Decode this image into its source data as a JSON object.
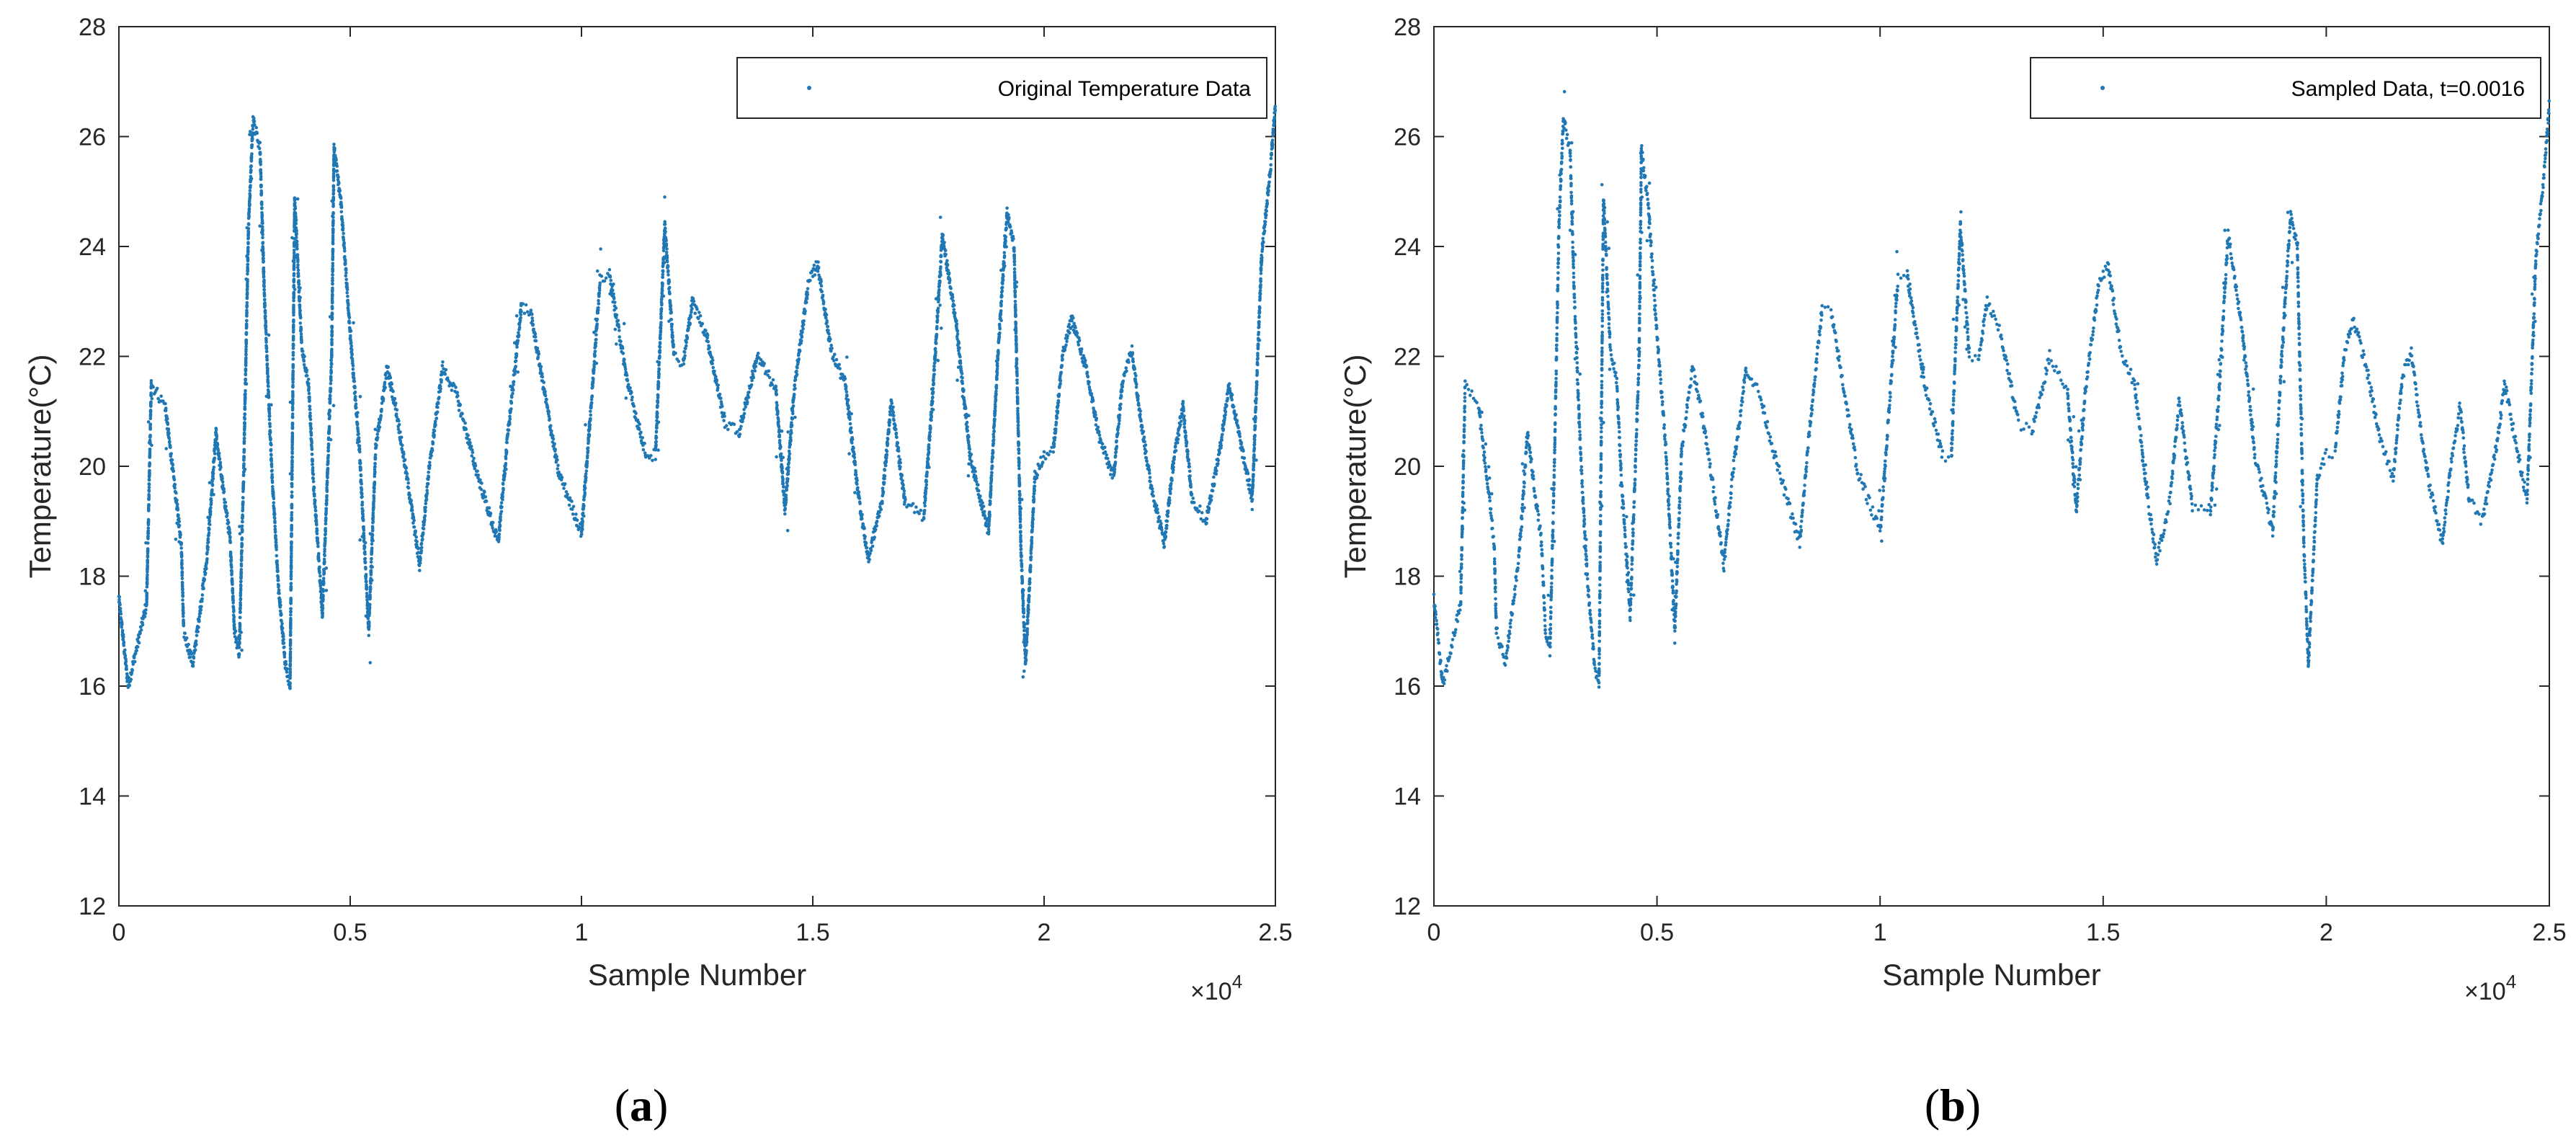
{
  "chart_data": [
    {
      "type": "scatter",
      "panel_label": "a",
      "legend": "Original Temperature Data",
      "xlabel": "Sample Number",
      "ylabel": "Temperature(°C)",
      "x_multiplier": "×10",
      "x_multiplier_exponent": "4",
      "xlim": [
        0,
        2.5
      ],
      "ylim": [
        12,
        28
      ],
      "xticks": [
        "0",
        "0.5",
        "1",
        "1.5",
        "2",
        "2.5"
      ],
      "yticks": [
        "12",
        "14",
        "16",
        "18",
        "20",
        "22",
        "24",
        "26",
        "28"
      ],
      "color": "#1f77b4",
      "density": 1.0,
      "trace": [
        [
          0.0,
          17.6
        ],
        [
          0.02,
          16.0
        ],
        [
          0.06,
          17.5
        ],
        [
          0.07,
          21.5
        ],
        [
          0.1,
          21.1
        ],
        [
          0.135,
          18.6
        ],
        [
          0.14,
          17.0
        ],
        [
          0.16,
          16.4
        ],
        [
          0.19,
          18.3
        ],
        [
          0.21,
          20.6
        ],
        [
          0.225,
          19.6
        ],
        [
          0.24,
          18.7
        ],
        [
          0.245,
          17.9
        ],
        [
          0.25,
          17.0
        ],
        [
          0.26,
          16.6
        ],
        [
          0.27,
          20.0
        ],
        [
          0.28,
          24.3
        ],
        [
          0.29,
          26.3
        ],
        [
          0.305,
          25.8
        ],
        [
          0.315,
          23.0
        ],
        [
          0.33,
          20.0
        ],
        [
          0.345,
          17.8
        ],
        [
          0.36,
          16.4
        ],
        [
          0.37,
          16.0
        ],
        [
          0.38,
          24.9
        ],
        [
          0.395,
          22.2
        ],
        [
          0.41,
          21.5
        ],
        [
          0.42,
          19.8
        ],
        [
          0.44,
          17.3
        ],
        [
          0.46,
          22.0
        ],
        [
          0.465,
          25.8
        ],
        [
          0.48,
          24.8
        ],
        [
          0.5,
          22.4
        ],
        [
          0.52,
          20.3
        ],
        [
          0.54,
          17.0
        ],
        [
          0.555,
          20.3
        ],
        [
          0.58,
          21.8
        ],
        [
          0.6,
          21.0
        ],
        [
          0.63,
          19.4
        ],
        [
          0.65,
          18.2
        ],
        [
          0.67,
          19.9
        ],
        [
          0.7,
          21.8
        ],
        [
          0.73,
          21.3
        ],
        [
          0.77,
          20.0
        ],
        [
          0.82,
          18.6
        ],
        [
          0.84,
          20.5
        ],
        [
          0.87,
          22.9
        ],
        [
          0.89,
          22.8
        ],
        [
          0.95,
          19.9
        ],
        [
          1.0,
          18.8
        ],
        [
          1.02,
          21.0
        ],
        [
          1.04,
          23.4
        ],
        [
          1.06,
          23.5
        ],
        [
          1.1,
          21.5
        ],
        [
          1.14,
          20.2
        ],
        [
          1.16,
          20.2
        ],
        [
          1.18,
          24.4
        ],
        [
          1.2,
          22.0
        ],
        [
          1.22,
          21.9
        ],
        [
          1.24,
          23.0
        ],
        [
          1.27,
          22.4
        ],
        [
          1.31,
          20.8
        ],
        [
          1.34,
          20.6
        ],
        [
          1.38,
          22.0
        ],
        [
          1.42,
          21.4
        ],
        [
          1.44,
          19.2
        ],
        [
          1.46,
          21.4
        ],
        [
          1.49,
          23.3
        ],
        [
          1.51,
          23.7
        ],
        [
          1.54,
          22.1
        ],
        [
          1.57,
          21.5
        ],
        [
          1.6,
          19.4
        ],
        [
          1.62,
          18.3
        ],
        [
          1.65,
          19.4
        ],
        [
          1.67,
          21.2
        ],
        [
          1.7,
          19.3
        ],
        [
          1.74,
          19.1
        ],
        [
          1.76,
          21.4
        ],
        [
          1.78,
          24.2
        ],
        [
          1.81,
          22.6
        ],
        [
          1.84,
          20.2
        ],
        [
          1.88,
          18.8
        ],
        [
          1.9,
          22.0
        ],
        [
          1.92,
          24.6
        ],
        [
          1.935,
          24.0
        ],
        [
          1.95,
          18.5
        ],
        [
          1.96,
          16.4
        ],
        [
          1.98,
          19.8
        ],
        [
          2.0,
          20.2
        ],
        [
          2.02,
          20.3
        ],
        [
          2.04,
          22.0
        ],
        [
          2.06,
          22.7
        ],
        [
          2.09,
          21.8
        ],
        [
          2.12,
          20.5
        ],
        [
          2.15,
          19.8
        ],
        [
          2.17,
          21.6
        ],
        [
          2.19,
          22.1
        ],
        [
          2.21,
          20.8
        ],
        [
          2.23,
          19.7
        ],
        [
          2.26,
          18.6
        ],
        [
          2.28,
          20.1
        ],
        [
          2.3,
          21.1
        ],
        [
          2.32,
          19.4
        ],
        [
          2.35,
          19.0
        ],
        [
          2.38,
          20.3
        ],
        [
          2.4,
          21.5
        ],
        [
          2.43,
          20.2
        ],
        [
          2.45,
          19.4
        ],
        [
          2.47,
          23.8
        ],
        [
          2.49,
          25.5
        ],
        [
          2.5,
          26.6
        ]
      ]
    },
    {
      "type": "scatter",
      "panel_label": "b",
      "legend": "Sampled Data, t=0.0016",
      "xlabel": "Sample Number",
      "ylabel": "Temperature(°C)",
      "x_multiplier": "×10",
      "x_multiplier_exponent": "4",
      "xlim": [
        0,
        2.5
      ],
      "ylim": [
        12,
        28
      ],
      "xticks": [
        "0",
        "0.5",
        "1",
        "1.5",
        "2",
        "2.5"
      ],
      "yticks": [
        "12",
        "14",
        "16",
        "18",
        "20",
        "22",
        "24",
        "26",
        "28"
      ],
      "color": "#1f77b4",
      "density": 0.55,
      "trace": [
        [
          0.0,
          17.6
        ],
        [
          0.02,
          16.0
        ],
        [
          0.06,
          17.5
        ],
        [
          0.07,
          21.5
        ],
        [
          0.1,
          21.1
        ],
        [
          0.135,
          18.6
        ],
        [
          0.14,
          17.0
        ],
        [
          0.16,
          16.4
        ],
        [
          0.19,
          18.3
        ],
        [
          0.21,
          20.6
        ],
        [
          0.225,
          19.6
        ],
        [
          0.24,
          18.7
        ],
        [
          0.245,
          17.9
        ],
        [
          0.25,
          17.0
        ],
        [
          0.26,
          16.6
        ],
        [
          0.27,
          20.0
        ],
        [
          0.28,
          24.3
        ],
        [
          0.29,
          26.3
        ],
        [
          0.305,
          25.8
        ],
        [
          0.315,
          23.0
        ],
        [
          0.33,
          20.0
        ],
        [
          0.345,
          17.8
        ],
        [
          0.36,
          16.4
        ],
        [
          0.37,
          16.0
        ],
        [
          0.38,
          24.9
        ],
        [
          0.395,
          22.2
        ],
        [
          0.41,
          21.5
        ],
        [
          0.42,
          19.8
        ],
        [
          0.44,
          17.3
        ],
        [
          0.46,
          22.0
        ],
        [
          0.465,
          25.8
        ],
        [
          0.48,
          24.8
        ],
        [
          0.5,
          22.4
        ],
        [
          0.52,
          20.3
        ],
        [
          0.54,
          17.0
        ],
        [
          0.555,
          20.3
        ],
        [
          0.58,
          21.8
        ],
        [
          0.6,
          21.0
        ],
        [
          0.63,
          19.4
        ],
        [
          0.65,
          18.2
        ],
        [
          0.67,
          19.9
        ],
        [
          0.7,
          21.8
        ],
        [
          0.73,
          21.3
        ],
        [
          0.77,
          20.0
        ],
        [
          0.82,
          18.6
        ],
        [
          0.84,
          20.5
        ],
        [
          0.87,
          22.9
        ],
        [
          0.89,
          22.8
        ],
        [
          0.95,
          19.9
        ],
        [
          1.0,
          18.8
        ],
        [
          1.02,
          21.0
        ],
        [
          1.04,
          23.4
        ],
        [
          1.06,
          23.5
        ],
        [
          1.1,
          21.5
        ],
        [
          1.14,
          20.2
        ],
        [
          1.16,
          20.2
        ],
        [
          1.18,
          24.4
        ],
        [
          1.2,
          22.0
        ],
        [
          1.22,
          21.9
        ],
        [
          1.24,
          23.0
        ],
        [
          1.27,
          22.4
        ],
        [
          1.31,
          20.8
        ],
        [
          1.34,
          20.6
        ],
        [
          1.38,
          22.0
        ],
        [
          1.42,
          21.4
        ],
        [
          1.44,
          19.2
        ],
        [
          1.46,
          21.4
        ],
        [
          1.49,
          23.3
        ],
        [
          1.51,
          23.7
        ],
        [
          1.54,
          22.1
        ],
        [
          1.57,
          21.5
        ],
        [
          1.6,
          19.4
        ],
        [
          1.62,
          18.3
        ],
        [
          1.65,
          19.4
        ],
        [
          1.67,
          21.2
        ],
        [
          1.7,
          19.3
        ],
        [
          1.74,
          19.1
        ],
        [
          1.76,
          21.4
        ],
        [
          1.78,
          24.2
        ],
        [
          1.81,
          22.6
        ],
        [
          1.84,
          20.2
        ],
        [
          1.88,
          18.8
        ],
        [
          1.9,
          22.0
        ],
        [
          1.92,
          24.6
        ],
        [
          1.935,
          24.0
        ],
        [
          1.95,
          18.5
        ],
        [
          1.96,
          16.4
        ],
        [
          1.98,
          19.8
        ],
        [
          2.0,
          20.2
        ],
        [
          2.02,
          20.3
        ],
        [
          2.04,
          22.0
        ],
        [
          2.06,
          22.7
        ],
        [
          2.09,
          21.8
        ],
        [
          2.12,
          20.5
        ],
        [
          2.15,
          19.8
        ],
        [
          2.17,
          21.6
        ],
        [
          2.19,
          22.1
        ],
        [
          2.21,
          20.8
        ],
        [
          2.23,
          19.7
        ],
        [
          2.26,
          18.6
        ],
        [
          2.28,
          20.1
        ],
        [
          2.3,
          21.1
        ],
        [
          2.32,
          19.4
        ],
        [
          2.35,
          19.0
        ],
        [
          2.38,
          20.3
        ],
        [
          2.4,
          21.5
        ],
        [
          2.43,
          20.2
        ],
        [
          2.45,
          19.4
        ],
        [
          2.47,
          23.8
        ],
        [
          2.49,
          25.5
        ],
        [
          2.5,
          26.6
        ]
      ]
    }
  ]
}
